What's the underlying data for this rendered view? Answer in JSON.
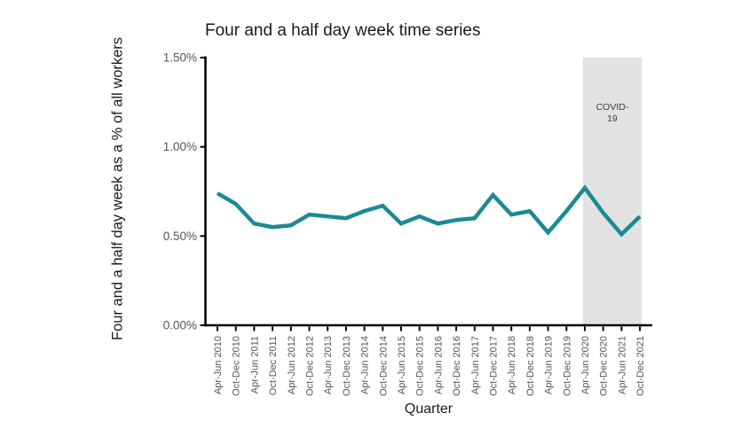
{
  "figure": {
    "title": "Four and a half day week time series",
    "x_axis_title": "Quarter",
    "y_axis_title": "Four and a half day week as a % of all workers"
  },
  "chart_data": {
    "type": "line",
    "title": "Four and a half day week time series",
    "xlabel": "Quarter",
    "ylabel": "Four and a half day week as a % of all workers",
    "categories": [
      "Apr-Jun 2010",
      "Oct-Dec 2010",
      "Apr-Jun 2011",
      "Oct-Dec 2011",
      "Apr-Jun 2012",
      "Oct-Dec 2012",
      "Apr-Jun 2013",
      "Oct-Dec 2013",
      "Apr-Jun 2014",
      "Oct-Dec 2014",
      "Apr-Jun 2015",
      "Oct-Dec 2015",
      "Apr-Jun 2016",
      "Oct-Dec 2016",
      "Apr-Jun 2017",
      "Oct-Dec 2017",
      "Apr-Jun 2018",
      "Oct-Dec 2018",
      "Apr-Jun 2019",
      "Oct-Dec 2019",
      "Apr-Jun 2020",
      "Oct-Dec 2020",
      "Apr-Jun 2021",
      "Oct-Dec 2021"
    ],
    "series": [
      {
        "name": "Four and a half day week as a % of all workers",
        "values": [
          0.74,
          0.68,
          0.57,
          0.55,
          0.56,
          0.62,
          0.61,
          0.6,
          0.64,
          0.67,
          0.57,
          0.61,
          0.57,
          0.59,
          0.6,
          0.73,
          0.62,
          0.64,
          0.52,
          0.64,
          0.77,
          0.63,
          0.51,
          0.61
        ],
        "color": "#1b8a94"
      }
    ],
    "ylim": [
      0,
      1.5
    ],
    "yticks": [
      0,
      0.5,
      1.0,
      1.5
    ],
    "ytick_labels": [
      "0.00%",
      "0.50%",
      "1.00%",
      "1.50%"
    ],
    "grid": false,
    "legend_position": "none",
    "annotations": [
      {
        "type": "shaded_region",
        "label": "COVID-19",
        "label_lines": [
          "COVID-",
          "19"
        ],
        "from_category": "Apr-Jun 2020",
        "to_category": "Oct-Dec 2021",
        "fill": "#e2e2e2"
      }
    ]
  },
  "colors": {
    "line": "#1b8a94",
    "band_fill": "#e2e2e2",
    "axis": "#000000",
    "tick_label": "#545454",
    "band_label": "#3c3c3c",
    "title": "#1a1a1a"
  }
}
